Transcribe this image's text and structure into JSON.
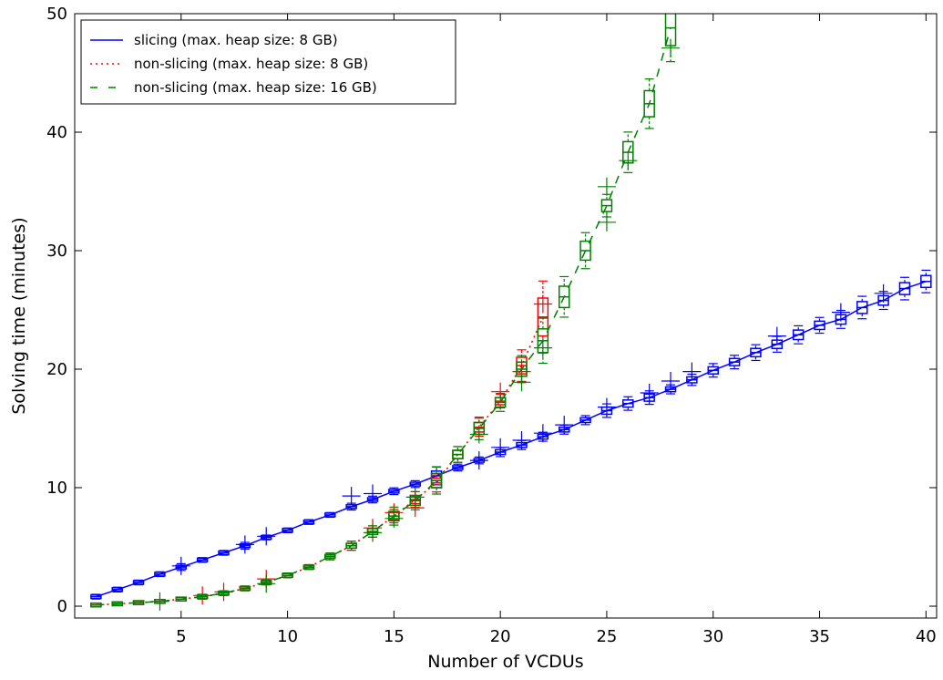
{
  "chart_data": {
    "type": "line",
    "title": "",
    "xlabel": "Number of VCDUs",
    "ylabel": "Solving time (minutes)",
    "xlim": [
      0,
      40.5
    ],
    "ylim": [
      -1,
      50
    ],
    "xticks": [
      5,
      10,
      15,
      20,
      25,
      30,
      35,
      40
    ],
    "yticks": [
      0,
      10,
      20,
      30,
      40,
      50
    ],
    "grid": false,
    "legend_position": "top-left",
    "series": [
      {
        "name": "slicing (max. heap size: 8 GB)",
        "color": "#0000ff",
        "line_style": "solid",
        "x": [
          1,
          2,
          3,
          4,
          5,
          6,
          7,
          8,
          9,
          10,
          11,
          12,
          13,
          14,
          15,
          16,
          17,
          18,
          19,
          20,
          21,
          22,
          23,
          24,
          25,
          26,
          27,
          28,
          29,
          30,
          31,
          32,
          33,
          34,
          35,
          36,
          37,
          38,
          39,
          40
        ],
        "y": [
          0.8,
          1.4,
          2.0,
          2.7,
          3.3,
          3.9,
          4.5,
          5.1,
          5.8,
          6.4,
          7.1,
          7.7,
          8.4,
          9.0,
          9.7,
          10.3,
          11.0,
          11.7,
          12.3,
          13.0,
          13.6,
          14.3,
          14.9,
          15.7,
          16.5,
          17.1,
          17.6,
          18.3,
          19.1,
          19.9,
          20.6,
          21.4,
          22.1,
          22.9,
          23.7,
          24.2,
          25.2,
          25.8,
          26.8,
          27.4
        ],
        "outliers": [
          [
            5,
            3.4
          ],
          [
            8,
            5.2
          ],
          [
            9,
            5.9
          ],
          [
            13,
            9.3
          ],
          [
            14,
            9.5
          ],
          [
            19,
            12.3
          ],
          [
            20,
            13.4
          ],
          [
            21,
            14.0
          ],
          [
            22,
            14.6
          ],
          [
            23,
            15.3
          ],
          [
            25,
            16.8
          ],
          [
            27,
            18.0
          ],
          [
            28,
            19.0
          ],
          [
            29,
            19.8
          ],
          [
            33,
            22.8
          ],
          [
            36,
            24.8
          ],
          [
            38,
            26.4
          ]
        ],
        "box_half_range": [
          0.1,
          0.1,
          0.1,
          0.1,
          0.15,
          0.1,
          0.1,
          0.15,
          0.1,
          0.1,
          0.1,
          0.1,
          0.15,
          0.15,
          0.15,
          0.15,
          0.4,
          0.15,
          0.15,
          0.2,
          0.2,
          0.2,
          0.2,
          0.2,
          0.3,
          0.3,
          0.3,
          0.2,
          0.25,
          0.3,
          0.3,
          0.35,
          0.35,
          0.4,
          0.35,
          0.4,
          0.5,
          0.4,
          0.5,
          0.5
        ]
      },
      {
        "name": "non-slicing (max. heap size: 8 GB)",
        "color": "#ff0000",
        "line_style": "dotted",
        "x": [
          1,
          2,
          3,
          4,
          5,
          6,
          7,
          8,
          9,
          10,
          11,
          12,
          13,
          14,
          15,
          16,
          17,
          18,
          19,
          20,
          21,
          22
        ],
        "y": [
          0.1,
          0.2,
          0.3,
          0.4,
          0.6,
          0.8,
          1.1,
          1.5,
          2.0,
          2.6,
          3.3,
          4.2,
          5.1,
          6.3,
          7.6,
          9.0,
          10.4,
          12.8,
          15.1,
          17.3,
          20.3,
          24.4
        ],
        "outliers": [
          [
            6,
            0.9
          ],
          [
            7,
            1.2
          ],
          [
            9,
            2.3
          ],
          [
            14,
            6.6
          ],
          [
            15,
            7.9
          ],
          [
            16,
            8.3
          ],
          [
            20,
            18.1
          ],
          [
            21,
            19.8
          ],
          [
            22,
            25.5
          ]
        ],
        "box_half_range": [
          0.05,
          0.05,
          0.05,
          0.05,
          0.05,
          0.1,
          0.1,
          0.1,
          0.1,
          0.1,
          0.1,
          0.15,
          0.2,
          0.25,
          0.3,
          0.35,
          0.4,
          0.35,
          0.4,
          0.3,
          0.7,
          1.6
        ]
      },
      {
        "name": "non-slicing (max. heap size: 16 GB)",
        "color": "#008000",
        "line_style": "dashed",
        "x": [
          1,
          2,
          3,
          4,
          5,
          6,
          7,
          8,
          9,
          10,
          11,
          12,
          13,
          14,
          15,
          16,
          17,
          18,
          19,
          20,
          21,
          22,
          23,
          24,
          25,
          26,
          27,
          28
        ],
        "y": [
          0.1,
          0.2,
          0.3,
          0.4,
          0.6,
          0.8,
          1.1,
          1.5,
          2.0,
          2.6,
          3.3,
          4.2,
          5.1,
          6.3,
          7.6,
          8.9,
          10.6,
          12.8,
          15.0,
          17.2,
          20.0,
          22.4,
          26.1,
          30.0,
          33.8,
          38.3,
          42.4,
          48.8
        ],
        "outliers": [
          [
            4,
            0.4
          ],
          [
            9,
            1.9
          ],
          [
            14,
            6.2
          ],
          [
            15,
            7.4
          ],
          [
            16,
            9.2
          ],
          [
            19,
            14.5
          ],
          [
            21,
            18.9
          ],
          [
            22,
            21.8
          ],
          [
            25,
            35.4
          ],
          [
            25,
            32.4
          ],
          [
            26,
            37.6
          ],
          [
            28,
            47.1
          ]
        ],
        "box_half_range": [
          0.05,
          0.05,
          0.05,
          0.05,
          0.05,
          0.1,
          0.1,
          0.1,
          0.1,
          0.1,
          0.1,
          0.15,
          0.2,
          0.25,
          0.4,
          0.4,
          0.6,
          0.35,
          0.5,
          0.4,
          0.6,
          1.0,
          0.9,
          0.8,
          0.5,
          0.9,
          1.1,
          1.5
        ]
      }
    ]
  }
}
